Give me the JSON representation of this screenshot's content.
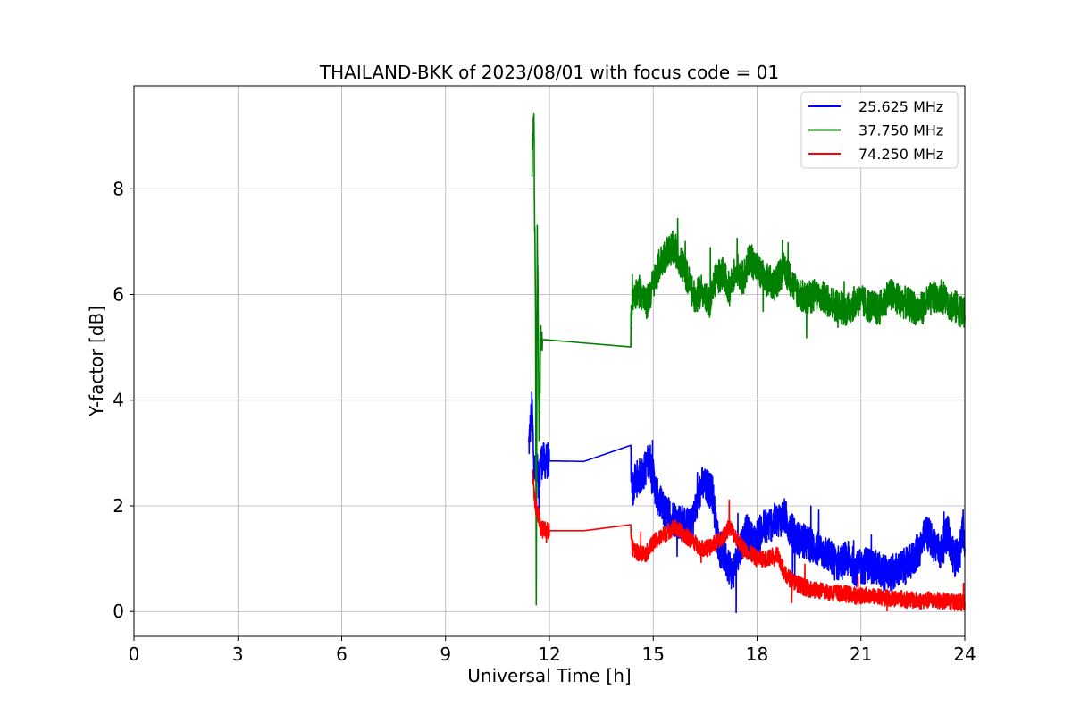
{
  "chart_data": {
    "type": "line",
    "title": "THAILAND-BKK of 2023/08/01 with focus code = 01",
    "xlabel": "Universal Time [h]",
    "ylabel": "Y-factor [dB]",
    "xlim": [
      0,
      24
    ],
    "ylim": [
      -0.47,
      9.95
    ],
    "xticks": [
      0,
      3,
      6,
      9,
      12,
      15,
      18,
      21,
      24
    ],
    "yticks": [
      0,
      2,
      4,
      6,
      8
    ],
    "grid": true,
    "legend_position": "top-right",
    "series": [
      {
        "name": "25.625 MHz",
        "color": "#0000ff",
        "x": [
          11.4,
          11.5,
          11.55,
          11.6,
          11.65,
          11.7,
          11.75,
          12.0,
          13.0,
          14.35,
          14.4,
          14.5,
          14.7,
          14.9,
          15.1,
          15.3,
          15.5,
          15.8,
          16.1,
          16.4,
          16.7,
          16.9,
          17.1,
          17.3,
          17.5,
          17.7,
          17.9,
          18.2,
          18.5,
          18.8,
          19.1,
          19.4,
          19.7,
          20.0,
          20.3,
          20.6,
          20.9,
          21.2,
          21.5,
          21.8,
          22.1,
          22.4,
          22.7,
          22.9,
          23.1,
          23.3,
          23.5,
          23.7,
          23.85,
          23.95,
          24.0
        ],
        "y": [
          3.1,
          3.9,
          2.8,
          2.6,
          2.7,
          2.4,
          2.85,
          2.85,
          2.84,
          2.83,
          2.3,
          2.5,
          2.6,
          2.9,
          2.2,
          1.9,
          1.8,
          1.7,
          1.6,
          2.4,
          2.3,
          1.2,
          1.0,
          0.7,
          1.2,
          1.5,
          1.3,
          1.6,
          1.7,
          1.8,
          1.4,
          1.3,
          1.2,
          1.1,
          0.9,
          1.0,
          0.8,
          0.9,
          0.8,
          0.7,
          0.8,
          0.9,
          1.2,
          1.5,
          1.3,
          1.1,
          1.5,
          1.0,
          1.1,
          1.6,
          1.2
        ],
        "noise": 0.35
      },
      {
        "name": "37.750 MHz",
        "color": "#008000",
        "x": [
          11.5,
          11.55,
          11.6,
          11.62,
          11.65,
          11.7,
          11.75,
          11.8,
          14.35,
          14.4,
          14.6,
          14.8,
          15.0,
          15.2,
          15.4,
          15.6,
          15.8,
          16.0,
          16.2,
          16.4,
          16.6,
          16.8,
          17.0,
          17.2,
          17.4,
          17.6,
          17.8,
          18.0,
          18.2,
          18.5,
          18.8,
          19.1,
          19.4,
          19.7,
          20.0,
          20.3,
          20.6,
          20.9,
          21.2,
          21.5,
          21.8,
          22.1,
          22.4,
          22.7,
          23.0,
          23.3,
          23.6,
          23.9,
          24.0
        ],
        "y": [
          8.5,
          9.4,
          5.5,
          0.0,
          7.5,
          3.4,
          5.1,
          5.15,
          5.3,
          6.0,
          6.1,
          5.8,
          6.2,
          6.6,
          6.8,
          6.9,
          6.6,
          6.3,
          5.9,
          6.1,
          5.8,
          6.3,
          6.4,
          6.1,
          6.5,
          6.3,
          6.7,
          6.5,
          6.3,
          6.2,
          6.5,
          6.1,
          5.9,
          6.0,
          5.9,
          5.8,
          5.7,
          5.9,
          5.8,
          5.7,
          6.0,
          5.9,
          5.8,
          5.7,
          5.9,
          6.0,
          5.8,
          5.7,
          5.6
        ],
        "noise": 0.32
      },
      {
        "name": "74.250 MHz",
        "color": "#ff0000",
        "x": [
          11.5,
          11.55,
          11.6,
          11.7,
          11.75,
          12.0,
          13.0,
          14.35,
          14.4,
          14.6,
          14.8,
          15.0,
          15.2,
          15.4,
          15.6,
          15.8,
          16.0,
          16.2,
          16.4,
          16.6,
          16.8,
          17.0,
          17.2,
          17.4,
          17.6,
          17.8,
          18.0,
          18.3,
          18.6,
          18.8,
          19.1,
          19.4,
          19.7,
          20.0,
          20.3,
          20.6,
          20.9,
          21.2,
          21.5,
          21.8,
          22.1,
          22.4,
          22.7,
          23.0,
          23.3,
          23.6,
          23.9,
          24.0
        ],
        "y": [
          2.7,
          2.3,
          2.0,
          1.8,
          1.55,
          1.53,
          1.53,
          1.53,
          1.2,
          1.1,
          1.1,
          1.3,
          1.4,
          1.5,
          1.6,
          1.5,
          1.4,
          1.3,
          1.2,
          1.2,
          1.3,
          1.4,
          1.6,
          1.4,
          1.2,
          1.1,
          1.0,
          1.0,
          1.1,
          0.7,
          0.55,
          0.45,
          0.4,
          0.38,
          0.35,
          0.33,
          0.3,
          0.3,
          0.28,
          0.25,
          0.25,
          0.22,
          0.2,
          0.22,
          0.2,
          0.18,
          0.18,
          0.15
        ],
        "noise": 0.16
      }
    ]
  }
}
